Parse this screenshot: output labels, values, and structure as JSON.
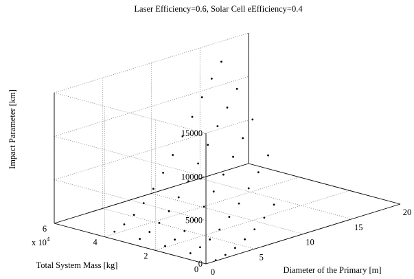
{
  "chart_data": {
    "type": "scatter",
    "projection": "3d",
    "title": "Laser Efficiency=0.6, Solar Cell eEfficiency=0.4",
    "xlabel": "Diameter of the Primary [m]",
    "ylabel": "Total System Mass [kg]",
    "zlabel": "Impact Parameter [km]",
    "y_multiplier_label": "x 10",
    "y_multiplier_exponent": "4",
    "x_ticks": [
      "0",
      "5",
      "10",
      "15",
      "20"
    ],
    "y_ticks": [
      "0",
      "2",
      "4",
      "6"
    ],
    "z_ticks": [
      "0",
      "5000",
      "10000",
      "15000"
    ],
    "xlim": [
      0,
      20
    ],
    "ylim": [
      0,
      60000
    ],
    "zlim": [
      0,
      15000
    ],
    "grid": true,
    "marker_color": "#000000",
    "series": [
      {
        "x": [
          1,
          2,
          3,
          4,
          5,
          6,
          7
        ],
        "y": [
          0,
          0,
          0,
          0,
          0,
          0,
          0
        ],
        "z": [
          80,
          350,
          800,
          1450,
          2250,
          3250,
          4400
        ]
      },
      {
        "x": [
          1,
          2,
          3,
          4,
          5,
          6,
          7,
          8,
          9
        ],
        "y": [
          10000,
          10000,
          10000,
          10000,
          10000,
          10000,
          10000,
          10000,
          10000
        ],
        "z": [
          100,
          450,
          1000,
          1800,
          2900,
          4100,
          5500,
          7000,
          8600
        ]
      },
      {
        "x": [
          1,
          2,
          3,
          4,
          5,
          6,
          7,
          8,
          9,
          10
        ],
        "y": [
          20000,
          20000,
          20000,
          20000,
          20000,
          20000,
          20000,
          20000,
          20000,
          20000
        ],
        "z": [
          150,
          550,
          1200,
          2100,
          3300,
          4700,
          6300,
          8000,
          9800,
          11600
        ]
      },
      {
        "x": [
          1,
          2,
          3,
          4,
          5,
          6,
          7,
          8,
          9,
          10,
          11
        ],
        "y": [
          30000,
          30000,
          30000,
          30000,
          30000,
          30000,
          30000,
          30000,
          30000,
          30000,
          30000
        ],
        "z": [
          200,
          650,
          1350,
          2350,
          3600,
          5100,
          6800,
          8600,
          10400,
          12200,
          14000
        ]
      },
      {
        "x": [
          1,
          2,
          3,
          4,
          5,
          6,
          7,
          8,
          9,
          10,
          11,
          12
        ],
        "y": [
          40000,
          40000,
          40000,
          40000,
          40000,
          40000,
          40000,
          40000,
          40000,
          40000,
          40000,
          40000
        ],
        "z": [
          250,
          750,
          1500,
          2500,
          3800,
          5300,
          7000,
          8800,
          10700,
          12600,
          14400,
          16000
        ]
      }
    ]
  }
}
